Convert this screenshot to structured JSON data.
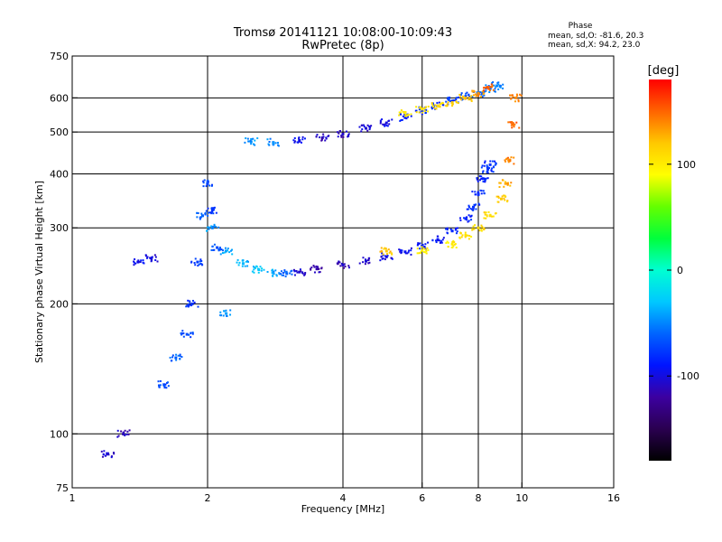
{
  "chart_data": {
    "type": "scatter",
    "title_line1": "Tromsø 20141121 10:08:00-10:09:43",
    "title_line2": "RwPretec (8p)",
    "xlabel": "Frequency [MHz]",
    "ylabel": "Stationary phase Virtual Height [km]",
    "x_scale": "log2",
    "y_scale": "log",
    "xlim": [
      1,
      16
    ],
    "ylim": [
      75,
      750
    ],
    "x_ticks": [
      1,
      2,
      4,
      6,
      8,
      10,
      16
    ],
    "y_ticks": [
      75,
      100,
      200,
      300,
      400,
      500,
      600,
      750
    ],
    "grid": true,
    "stats": {
      "heading": "Phase",
      "line_o": "mean, sd,O: -81.6, 20.3",
      "line_x": "mean, sd,X:  94.2, 23.0"
    },
    "colorbar": {
      "label": "[deg]",
      "range": [
        -180,
        180
      ],
      "ticks": [
        100,
        0,
        -100
      ],
      "colors": [
        "#000000",
        "#2a0050",
        "#3c00a0",
        "#0014ff",
        "#0064ff",
        "#00c8ff",
        "#00ffd2",
        "#00ff3c",
        "#64ff00",
        "#ffff00",
        "#ffc800",
        "#ff6400",
        "#ff0000"
      ]
    },
    "series": [
      {
        "trace": "O-mode F-layer lower trace",
        "x": [
          2.05,
          2.2,
          2.4,
          2.6,
          2.8,
          3.0,
          3.2,
          3.5,
          4.0,
          4.5,
          5.0,
          5.5,
          6.0,
          6.5,
          7.0,
          7.5,
          7.8,
          8.0,
          8.2,
          8.4,
          8.5
        ],
        "y": [
          300,
          265,
          248,
          240,
          236,
          235,
          237,
          241,
          246,
          251,
          257,
          264,
          272,
          282,
          295,
          315,
          335,
          360,
          390,
          410,
          420
        ],
        "phase": [
          -45,
          -40,
          -35,
          -30,
          -40,
          -60,
          -105,
          -115,
          -110,
          -105,
          -100,
          -95,
          -90,
          -90,
          -85,
          -85,
          -80,
          -80,
          -85,
          -80,
          -80
        ]
      },
      {
        "trace": "X-mode F-layer lower trace",
        "x": [
          5.0,
          6.0,
          7.0,
          7.5,
          8.0,
          8.5,
          9.0,
          9.2,
          9.4,
          9.55,
          9.7
        ],
        "y": [
          265,
          266,
          275,
          288,
          300,
          320,
          350,
          380,
          430,
          520,
          600
        ],
        "phase": [
          120,
          100,
          100,
          105,
          110,
          110,
          120,
          130,
          140,
          150,
          140
        ]
      },
      {
        "trace": "O-mode upper trace",
        "x": [
          2.5,
          2.8,
          3.2,
          3.6,
          4.0,
          4.5,
          5.0,
          5.5,
          6.0,
          6.5,
          7.0,
          7.5,
          8.0,
          8.5,
          8.8
        ],
        "y": [
          475,
          473,
          478,
          485,
          495,
          510,
          525,
          540,
          560,
          575,
          590,
          605,
          615,
          630,
          640
        ],
        "phase": [
          -45,
          -50,
          -95,
          -110,
          -110,
          -105,
          -100,
          -90,
          -85,
          -80,
          -75,
          -70,
          -60,
          -55,
          -50
        ]
      },
      {
        "trace": "X-mode upper trace",
        "x": [
          5.5,
          6.0,
          6.5,
          7.0,
          7.5,
          8.0,
          8.4
        ],
        "y": [
          555,
          565,
          575,
          585,
          600,
          615,
          635
        ],
        "phase": [
          100,
          105,
          110,
          115,
          125,
          135,
          150
        ]
      },
      {
        "trace": "E/Es and low-height echoes",
        "x": [
          1.6,
          1.7,
          1.8,
          1.85,
          1.9,
          1.95,
          2.0,
          2.05,
          2.1,
          2.2,
          1.4,
          1.5,
          1.3,
          1.2
        ],
        "y": [
          130,
          150,
          170,
          200,
          250,
          320,
          380,
          330,
          270,
          190,
          250,
          255,
          100,
          90
        ],
        "phase": [
          -70,
          -60,
          -70,
          -80,
          -75,
          -60,
          -70,
          -80,
          -70,
          -45,
          -95,
          -100,
          -110,
          -105
        ]
      }
    ]
  }
}
